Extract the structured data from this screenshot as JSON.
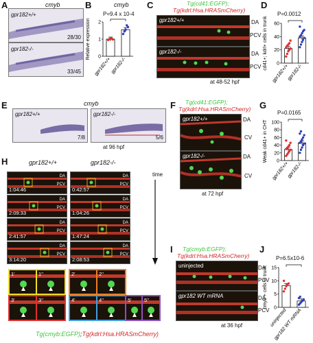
{
  "panels": {
    "A": {
      "letter": "A",
      "title": "cmyb",
      "wt_label": "gpr182+/+",
      "mut_label": "gpr182-/-",
      "wt_count": "28/30",
      "mut_count": "33/45"
    },
    "B": {
      "letter": "B",
      "title": "cmyb",
      "ylabel": "Relative expression",
      "pvalue": "P=9.4 x 10-4",
      "xticks": [
        "gpr182+/+",
        "gpr182-/-"
      ]
    },
    "C": {
      "letter": "C",
      "title_green": "Tg(cd41:EGFP);",
      "title_red": "Tg(kdrl:Hsa.HRASmCherry)",
      "wt_label": "gpr182+/+",
      "mut_label": "gpr182-/-",
      "da": "DA",
      "pcv": "PCV",
      "time": "at 48-52 hpf"
    },
    "D": {
      "letter": "D",
      "ylabel": "cd41+; kdrl+ cells in trunk",
      "pvalue": "P=0.0012",
      "xticks": [
        "gpr182+/+",
        "gpr182-/-"
      ]
    },
    "E": {
      "letter": "E",
      "title": "cmyb",
      "wt_label": "gpr182+/+",
      "mut_label": "gpr182-/-",
      "wt_count": "7/8",
      "mut_count": "5/6",
      "time": "at 96 hpf"
    },
    "F": {
      "letter": "F",
      "title_green": "Tg(cd41:EGFP);",
      "title_red": "Tg(kdrl:Hsa.HRASmCherry)",
      "wt_label": "gpr182+/+",
      "mut_label": "gpr182-/-",
      "da": "DA",
      "cv": "CV",
      "time": "at 72 hpf"
    },
    "G": {
      "letter": "G",
      "ylabel": "Weak cd41+ in CHT",
      "pvalue": "P=0.0165",
      "xticks": [
        "gpr182+/+",
        "gpr182-/-"
      ]
    },
    "H": {
      "letter": "H",
      "wt_header": "gpr182+/+",
      "mut_header": "gpr182-/-",
      "time_label": "time",
      "wt_times": [
        "1:04:46",
        "2:09:33",
        "2:41:57",
        "3:14:20"
      ],
      "mut_times": [
        "0:42:57",
        "1:04:26",
        "1:47:24",
        "2:08:53"
      ],
      "da": "DA",
      "pcv": "PCV",
      "inset_labels": [
        "1'",
        "1''",
        "2'",
        "2''",
        "3'",
        "3''",
        "4'",
        "4''",
        "5'",
        "5''"
      ],
      "caption_green": "Tg(cmyb:EGFP)",
      "caption_sep": ";",
      "caption_red": "Tg(kdrl:Hsa.HRASmCherry)"
    },
    "I": {
      "letter": "I",
      "title_green": "Tg(cmyb:EGFP);",
      "title_red": "Tg(kdrl:Hsa.HRASmCherry)",
      "top_label": "uninjected",
      "bottom_label": "gpr182 WT mRNA",
      "da": "DA",
      "pcv": "PCV",
      "time": "at 36 hpf"
    },
    "J": {
      "letter": "J",
      "ylabel": "cmyb + cells in trunk",
      "pvalue": "P=6.5x10-6",
      "xticks": [
        "uninjected",
        "gpr182 WT mRNA"
      ]
    }
  },
  "chart_data": [
    {
      "panel": "B",
      "type": "bar",
      "title": "cmyb",
      "ylabel": "Relative expression",
      "categories": [
        "gpr182+/+",
        "gpr182-/-"
      ],
      "values": [
        1.0,
        1.55
      ],
      "ylim": [
        0,
        2
      ],
      "yticks": [
        0,
        1,
        2
      ],
      "points": [
        [
          0.95,
          1.0,
          1.02,
          1.03,
          0.98
        ],
        [
          1.3,
          1.45,
          1.55,
          1.8,
          1.7
        ]
      ],
      "point_colors": [
        "#e03030",
        "#2f3fb8"
      ]
    },
    {
      "panel": "D",
      "type": "bar",
      "ylabel": "cd41+; kdrl+ cells in trunk",
      "categories": [
        "gpr182+/+",
        "gpr182-/-"
      ],
      "values": [
        22,
        38
      ],
      "ylim": [
        0,
        60
      ],
      "yticks": [
        0,
        20,
        40,
        60
      ],
      "points": [
        [
          10,
          14,
          18,
          20,
          22,
          24,
          26,
          28,
          30,
          34
        ],
        [
          24,
          28,
          32,
          35,
          38,
          40,
          42,
          45,
          48,
          50,
          55
        ]
      ],
      "point_colors": [
        "#e03030",
        "#2f3fb8"
      ]
    },
    {
      "panel": "G",
      "type": "bar",
      "ylabel": "Weak cd41+ in CHT",
      "categories": [
        "gpr182+/+",
        "gpr182-/-"
      ],
      "values": [
        29,
        46
      ],
      "ylim": [
        0,
        100
      ],
      "yticks": [
        0,
        20,
        40,
        60,
        80,
        100
      ],
      "points": [
        [
          12,
          16,
          20,
          24,
          28,
          30,
          33,
          36,
          40,
          46,
          52
        ],
        [
          20,
          28,
          34,
          40,
          44,
          46,
          50,
          55,
          60,
          66,
          70,
          76
        ]
      ],
      "point_colors": [
        "#e03030",
        "#2f3fb8"
      ]
    },
    {
      "panel": "J",
      "type": "bar",
      "ylabel": "cmyb + cells in trunk",
      "categories": [
        "uninjected",
        "gpr182 WT mRNA"
      ],
      "values": [
        8.2,
        2.4
      ],
      "ylim": [
        0,
        15
      ],
      "yticks": [
        0,
        5,
        10,
        15
      ],
      "points": [
        [
          6,
          7,
          8,
          8.5,
          9,
          10
        ],
        [
          1,
          1.5,
          2,
          2.5,
          3,
          3.5,
          4
        ]
      ],
      "point_colors": [
        "#e03030",
        "#2f3fb8"
      ]
    }
  ]
}
